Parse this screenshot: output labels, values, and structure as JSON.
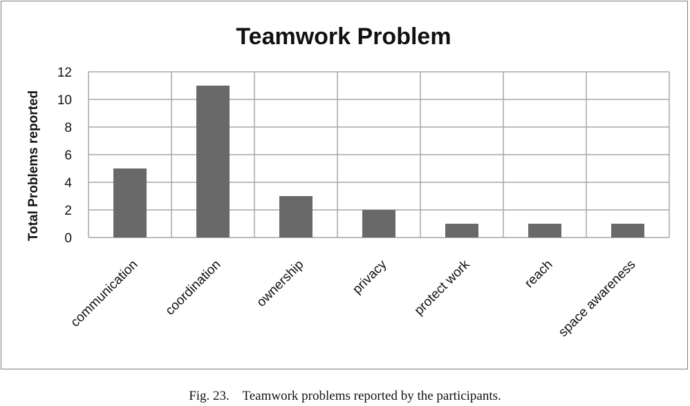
{
  "chart_data": {
    "type": "bar",
    "title": "Teamwork Problem",
    "xlabel": "",
    "ylabel": "Total Problems reported",
    "categories": [
      "communication",
      "coordination",
      "ownership",
      "privacy",
      "protect work",
      "reach",
      "space awareness"
    ],
    "values": [
      5,
      11,
      3,
      2,
      1,
      1,
      1
    ],
    "ylim": [
      0,
      12
    ],
    "yticks": [
      "0",
      "2",
      "4",
      "6",
      "8",
      "10",
      "12"
    ],
    "grid": true,
    "legend": "none",
    "bar_color": "#696969",
    "grid_color": "#a6a6a6"
  },
  "caption": "Fig. 23.    Teamwork problems reported by the participants."
}
